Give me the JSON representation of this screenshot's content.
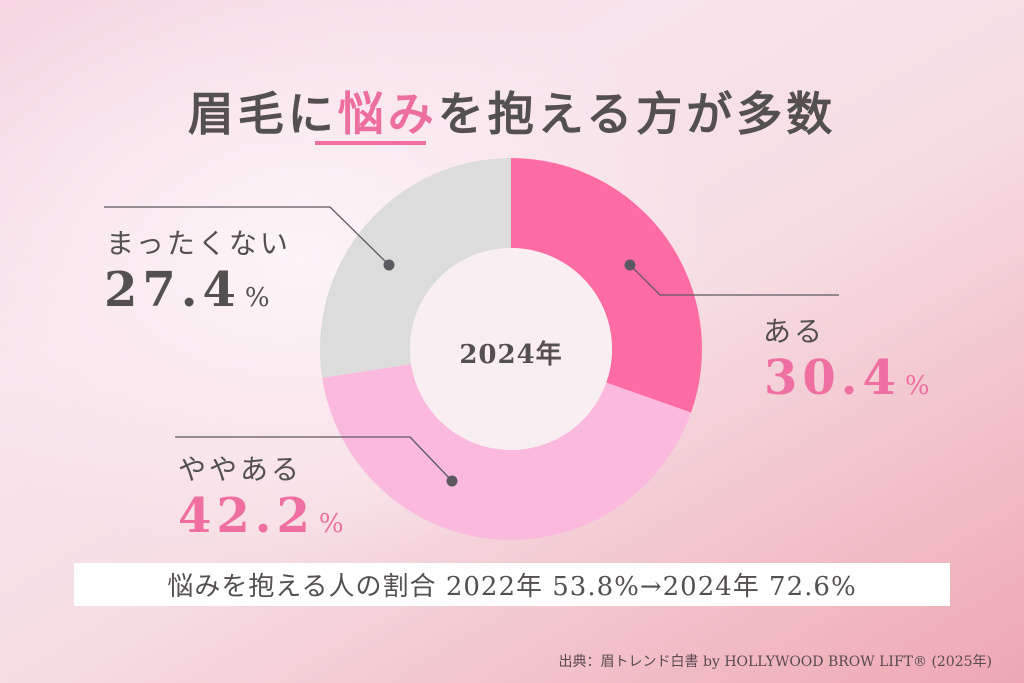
{
  "title": {
    "prefix": "眉毛に",
    "accent": "悩み",
    "suffix": "を抱える方が多数"
  },
  "chart_data": {
    "type": "pie",
    "variant": "donut",
    "title": "眉毛に悩みを抱える方が多数",
    "center_label": "2024年",
    "categories": [
      "ある",
      "ややある",
      "まったくない"
    ],
    "values": [
      30.4,
      42.2,
      27.4
    ],
    "unit": "%",
    "colors": [
      "#fe6ca3",
      "#fbb9de",
      "#dcdcdc"
    ],
    "start_angle": "12 o'clock, clockwise"
  },
  "segments": [
    {
      "label": "ある",
      "value": "30.4",
      "unit": "%",
      "color": "#fe6ca3"
    },
    {
      "label": "ややある",
      "value": "42.2",
      "unit": "%",
      "color": "#fbb9de"
    },
    {
      "label": "まったくない",
      "value": "27.4",
      "unit": "%",
      "color": "#dcdcdc"
    }
  ],
  "summary": "悩みを抱える人の割合 2022年 53.8%→2024年 72.6%",
  "source": "出典：眉トレンド白書 by HOLLYWOOD BROW LIFT® (2025年)",
  "colors": {
    "text": "#555050",
    "accent": "#ee6fa0",
    "leader": "#5c5860"
  }
}
